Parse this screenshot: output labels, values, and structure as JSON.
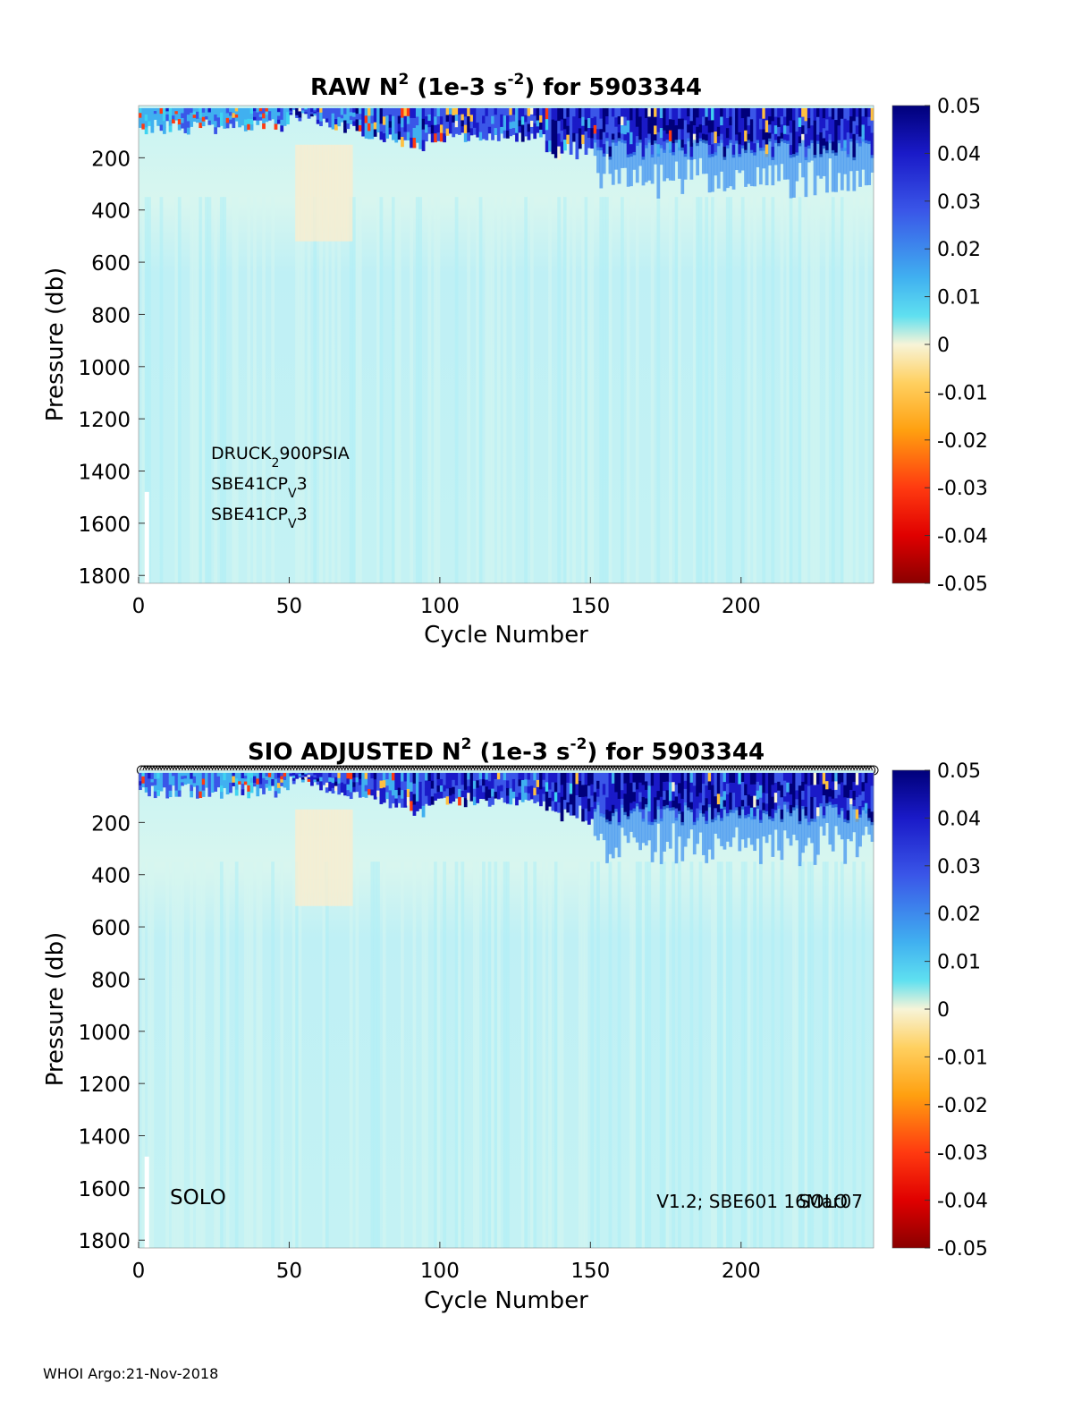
{
  "footer": "WHOI Argo:21-Nov-2018",
  "colorbar": {
    "ticks": [
      "0.05",
      "0.04",
      "0.03",
      "0.02",
      "0.01",
      "0",
      "-0.01",
      "-0.02",
      "-0.03",
      "-0.04",
      "-0.05"
    ],
    "colors": {
      "positive_max": "#00007a",
      "positive_mid": "#3a56e8",
      "positive_low": "#3fd3f0",
      "zero": "#f7f4d8",
      "negative_low": "#ffc040",
      "negative_mid": "#ff3a10",
      "negative_max": "#8a0000"
    }
  },
  "chart_data": [
    {
      "type": "heatmap",
      "title": {
        "pre": "RAW N",
        "sup1": "2",
        "mid": " (1e-3 s",
        "sup2": "-2",
        "post": ") for 5903344"
      },
      "xlabel": "Cycle Number",
      "ylabel": "Pressure (db)",
      "xlim": [
        0,
        244
      ],
      "ylim": [
        0,
        1830
      ],
      "y_reversed": true,
      "xticks": [
        "0",
        "50",
        "100",
        "150",
        "200"
      ],
      "yticks": [
        "200",
        "400",
        "600",
        "800",
        "1000",
        "1200",
        "1400",
        "1600",
        "1800"
      ],
      "clim": [
        -0.05,
        0.05
      ],
      "colorbar": "right",
      "annotations": {
        "sensor1_main": "DRUCK",
        "sensor1_sub": "2",
        "sensor1_tail": "900PSIA",
        "sensor2_main": "SBE41CP",
        "sensor2_sub": "V",
        "sensor2_tail": "3",
        "sensor3_main": "SBE41CP",
        "sensor3_sub": "V",
        "sensor3_tail": "3"
      },
      "has_top_markers": false
    },
    {
      "type": "heatmap",
      "title": {
        "pre": "SIO  ADJUSTED N",
        "sup1": "2",
        "mid": " (1e-3 s",
        "sup2": "-2",
        "post": ") for 5903344"
      },
      "xlabel": "Cycle Number",
      "ylabel": "Pressure (db)",
      "xlim": [
        0,
        244
      ],
      "ylim": [
        0,
        1830
      ],
      "y_reversed": true,
      "xticks": [
        "0",
        "50",
        "100",
        "150",
        "200"
      ],
      "yticks": [
        "200",
        "400",
        "600",
        "800",
        "1000",
        "1200",
        "1400",
        "1600",
        "1800"
      ],
      "clim": [
        -0.05,
        0.05
      ],
      "colorbar": "right",
      "annotations": {
        "left": "SOLO",
        "right_a": "V1.2; SBE601 16Mar07",
        "right_b": "SOLO"
      },
      "has_top_markers": true
    }
  ]
}
